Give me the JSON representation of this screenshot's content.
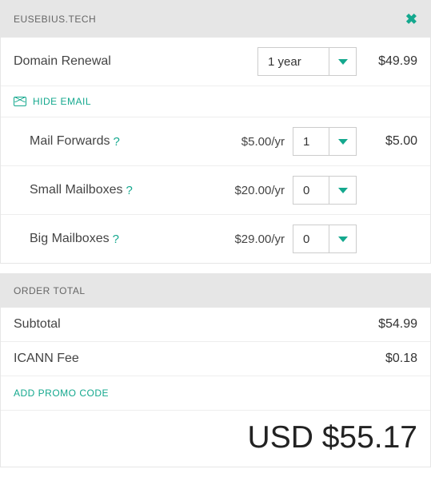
{
  "colors": {
    "accent": "#14a88e",
    "header_bg": "#e6e6e6",
    "border": "#eeeeee",
    "text": "#444444"
  },
  "domain_panel": {
    "title": "EUSEBIUS.TECH",
    "renewal": {
      "label": "Domain Renewal",
      "term": "1 year",
      "price": "$49.99"
    },
    "hide_email": "HIDE EMAIL",
    "addons": {
      "mail_forwards": {
        "label": "Mail Forwards",
        "unit": "$5.00/yr",
        "qty": "1",
        "line": "$5.00"
      },
      "small_mailboxes": {
        "label": "Small Mailboxes",
        "unit": "$20.00/yr",
        "qty": "0",
        "line": ""
      },
      "big_mailboxes": {
        "label": "Big Mailboxes",
        "unit": "$29.00/yr",
        "qty": "0",
        "line": ""
      }
    }
  },
  "order_total": {
    "title": "ORDER TOTAL",
    "subtotal": {
      "label": "Subtotal",
      "value": "$54.99"
    },
    "icann": {
      "label": "ICANN Fee",
      "value": "$0.18"
    },
    "promo": "ADD PROMO CODE",
    "grand": "USD $55.17"
  }
}
